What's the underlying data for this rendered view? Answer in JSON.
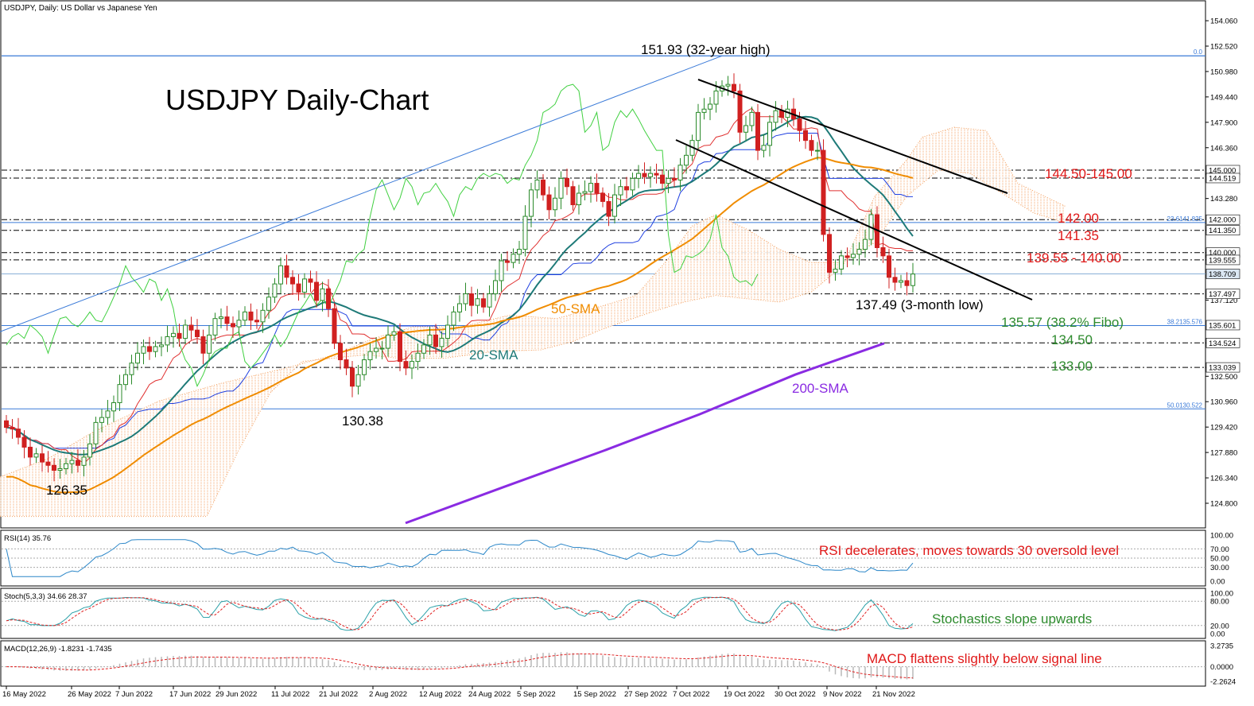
{
  "header": {
    "symbol_line": "USDJPY, Daily:  US Dollar vs Japanese Yen"
  },
  "chart_data": [
    {
      "type": "candlestick",
      "title": "USDJPY Daily-Chart",
      "ylim": [
        123.5,
        155.5
      ],
      "x_dates": [
        "16 May 2022",
        "26 May 2022",
        "7 Jun 2022",
        "17 Jun 2022",
        "29 Jun 2022",
        "11 Jul 2022",
        "21 Jul 2022",
        "2 Aug 2022",
        "12 Aug 2022",
        "24 Aug 2022",
        "5 Sep 2022",
        "15 Sep 2022",
        "27 Sep 2022",
        "7 Oct 2022",
        "19 Oct 2022",
        "30 Oct 2022",
        "9 Nov 2022",
        "21 Nov 2022"
      ],
      "y_ticks": [
        "154.060",
        "152.520",
        "150.980",
        "149.440",
        "147.900",
        "146.360",
        "143.280",
        "141.350",
        "140.000",
        "139.555",
        "137.120",
        "134.524",
        "133.039",
        "132.500",
        "130.960",
        "129.420",
        "127.880",
        "126.340",
        "124.800"
      ],
      "price_tags": [
        {
          "label": "145.000",
          "value": 145.0
        },
        {
          "label": "144.519",
          "value": 144.519
        },
        {
          "label": "142.000",
          "value": 142.0
        },
        {
          "label": "141.350",
          "value": 141.35
        },
        {
          "label": "140.000",
          "value": 140.0
        },
        {
          "label": "139.555",
          "value": 139.555
        },
        {
          "label": "138.709",
          "value": 138.709,
          "current": true
        },
        {
          "label": "137.497",
          "value": 137.497
        },
        {
          "label": "135.601",
          "value": 135.601
        },
        {
          "label": "134.524",
          "value": 134.524
        },
        {
          "label": "133.039",
          "value": 133.039
        }
      ],
      "fib_levels": [
        {
          "label": "0.0",
          "value": 151.93
        },
        {
          "label": "23.6141.825",
          "value": 141.825
        },
        {
          "label": "38.2135.576",
          "value": 135.576
        },
        {
          "label": "50.0130.522",
          "value": 130.522
        }
      ],
      "dash_levels": [
        145.0,
        144.519,
        142.0,
        141.35,
        140.0,
        139.555,
        137.497,
        134.524,
        133.039
      ],
      "annotations": {
        "high": "151.93 (32-year high)",
        "low3m": "137.49 (3-month low)",
        "low_jul": "130.38",
        "low_may": "126.35",
        "sma50": "50-SMA",
        "sma20": "20-SMA",
        "sma200": "200-SMA",
        "lvl_144": "144.50-145.00",
        "lvl_142": "142.00",
        "lvl_141": "141.35",
        "lvl_139": "139.55 - 140.00",
        "lvl_135": "135.57 (38.2% Fibo)",
        "lvl_134": "134.50",
        "lvl_133": "133.00"
      },
      "candles_close": [
        129.4,
        129.3,
        128.8,
        128.2,
        127.6,
        127.8,
        127.3,
        127.1,
        126.8,
        126.9,
        127.2,
        127.4,
        127.1,
        127.6,
        128.4,
        129.7,
        130.0,
        130.4,
        130.9,
        132.0,
        132.6,
        133.3,
        133.9,
        134.3,
        134.0,
        134.3,
        134.4,
        134.9,
        135.1,
        134.8,
        135.6,
        135.3,
        134.9,
        133.9,
        135.0,
        136.0,
        136.1,
        135.7,
        135.5,
        135.9,
        136.4,
        135.9,
        135.8,
        136.5,
        137.3,
        138.1,
        139.2,
        138.5,
        138.1,
        137.6,
        138.4,
        138.2,
        137.1,
        137.8,
        136.6,
        134.5,
        133.5,
        133.0,
        131.9,
        132.6,
        133.5,
        134.0,
        134.2,
        134.2,
        135.0,
        135.2,
        133.4,
        133.0,
        133.4,
        133.9,
        134.4,
        135.0,
        134.3,
        134.8,
        135.6,
        136.4,
        136.9,
        137.5,
        136.8,
        137.2,
        136.7,
        137.5,
        138.3,
        139.5,
        139.4,
        139.9,
        140.2,
        142.2,
        143.8,
        144.4,
        143.5,
        142.6,
        143.3,
        144.5,
        144.0,
        142.9,
        143.6,
        143.7,
        144.2,
        143.6,
        143.1,
        142.2,
        143.5,
        144.0,
        143.8,
        144.5,
        144.8,
        144.6,
        144.8,
        144.7,
        144.2,
        144.5,
        144.4,
        145.3,
        145.9,
        146.8,
        148.5,
        148.7,
        149.0,
        149.8,
        150.1,
        150.2,
        149.8,
        147.3,
        147.7,
        148.5,
        146.2,
        146.5,
        147.9,
        148.6,
        148.2,
        148.7,
        148.1,
        147.4,
        146.8,
        146.2,
        146.2,
        141.1,
        138.8,
        139.0,
        139.8,
        139.7,
        139.9,
        140.2,
        140.8,
        142.3,
        140.3,
        139.8,
        138.5,
        138.2,
        138.3,
        138.0,
        138.7
      ],
      "oscillators": [
        {
          "name": "RSI",
          "header": "RSI(14) 35.76",
          "y_ticks": [
            "100.00",
            "70.00",
            "50.00",
            "30.00",
            "0.00"
          ],
          "note": "RSI decelerates, moves towards 30 oversold level"
        },
        {
          "name": "Stochastic",
          "header": "Stoch(5,3,3) 34.66 28.37",
          "y_ticks": [
            "100.00",
            "80.00",
            "20.00",
            "0.00"
          ],
          "note": "Stochastics slope upwards"
        },
        {
          "name": "MACD",
          "header": "MACD(12,26,9) -1.8231 -1.7435",
          "y_ticks": [
            "3.2735",
            "0.0000",
            "-2.2624"
          ],
          "note": "MACD flattens slightly below signal line"
        }
      ]
    }
  ],
  "colors": {
    "candle_up": "#2a8a2a",
    "candle_down": "#d02020",
    "sma50": "#f08c00",
    "sma20": "#1e7a78",
    "sma200": "#8a2be2",
    "tenkan": "#e03030",
    "kijun": "#2040e0",
    "chikou": "#40d040",
    "kumo": "#f3a060",
    "trendline": "#000000",
    "fib": "#3a7ad8",
    "rsi": "#2a86c8",
    "annotation_red": "#e01818",
    "annotation_green": "#2e8b2e"
  }
}
